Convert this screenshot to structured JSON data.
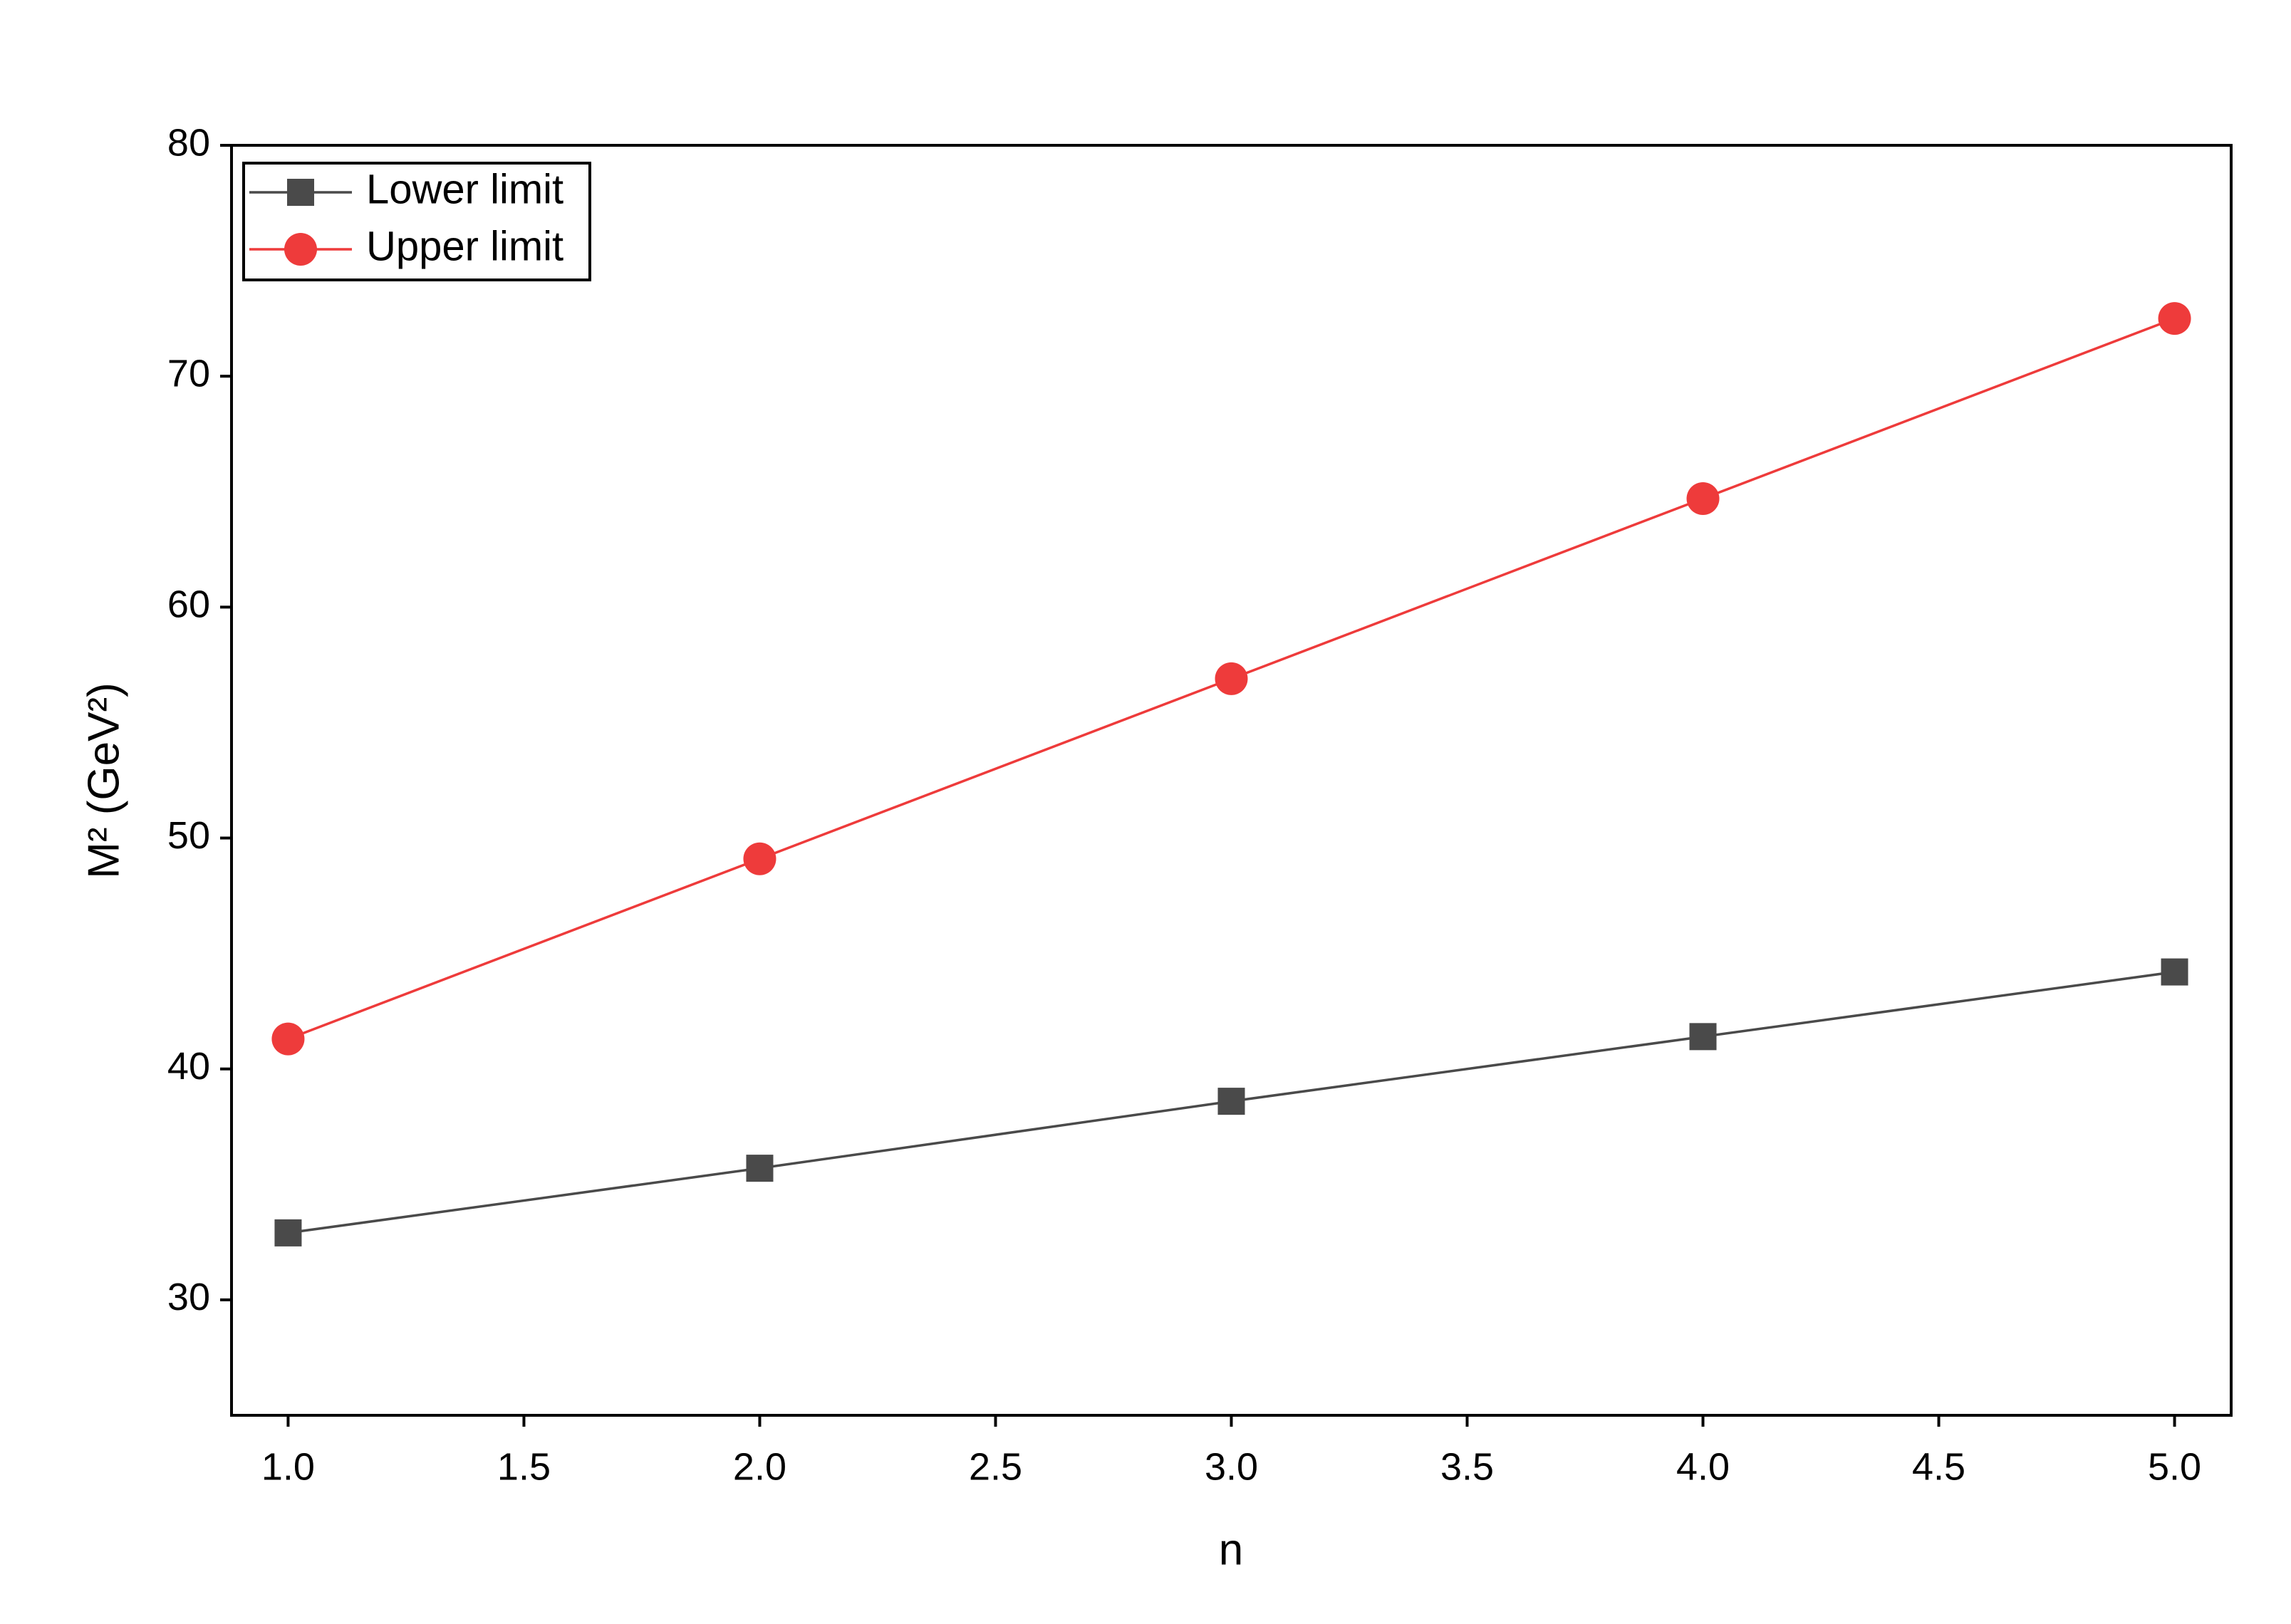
{
  "chart_data": {
    "type": "line",
    "x_label": "n",
    "y_label": "M² (GeV²)",
    "x": [
      1,
      2,
      3,
      4,
      5
    ],
    "series": [
      {
        "name": "Lower limit",
        "color": "#4a4a4a",
        "marker": "square",
        "values": [
          32.9,
          35.7,
          38.6,
          41.4,
          44.2
        ]
      },
      {
        "name": "Upper limit",
        "color": "#ee3b3b",
        "marker": "circle",
        "values": [
          41.3,
          49.1,
          56.9,
          64.7,
          72.5
        ]
      }
    ],
    "xlim": [
      0.88,
      5.12
    ],
    "xticks": [
      {
        "value": 1,
        "label": "1.0"
      },
      1.5,
      {
        "value": 2,
        "label": "2.0"
      },
      2.5,
      {
        "value": 3,
        "label": "3.0"
      },
      3.5,
      {
        "value": 4,
        "label": "4.0"
      },
      4.5,
      {
        "value": 5,
        "label": "5.0"
      }
    ],
    "ylim": [
      25,
      80
    ],
    "yticks": [
      30,
      40,
      50,
      60,
      70,
      80
    ],
    "grid": false,
    "legend": "upper-left"
  }
}
